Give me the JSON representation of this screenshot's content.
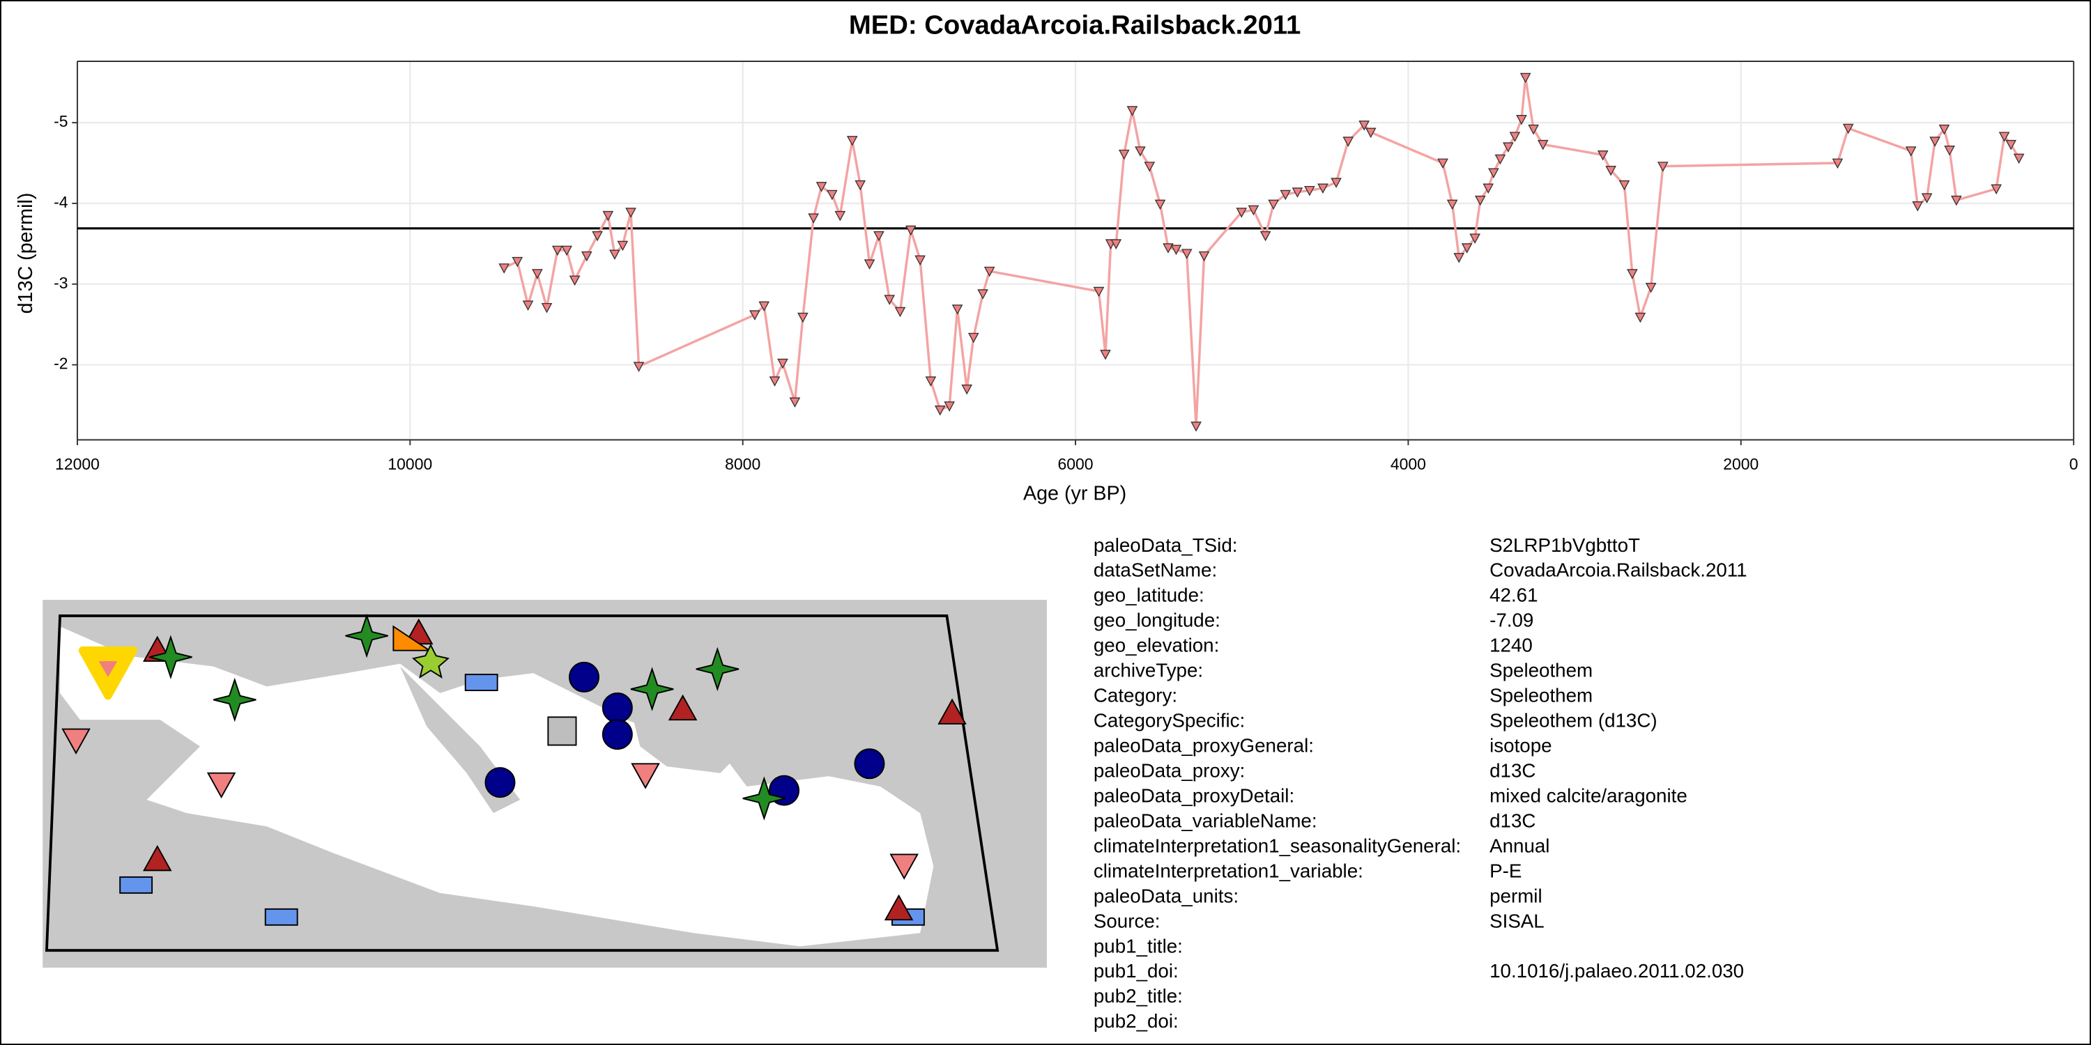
{
  "chart_data": {
    "type": "line",
    "title": "MED: CovadaArcoia.Railsback.2011",
    "xlabel": "Age (yr BP)",
    "ylabel": "d13C (permil)",
    "color": "#f4a3a3",
    "marker_color": "#f08080",
    "xlim": [
      12000,
      0
    ],
    "xticks": [
      12000,
      10000,
      8000,
      6000,
      4000,
      2000,
      0
    ],
    "ylim": [
      -1.07,
      -5.76
    ],
    "yticks": [
      -2,
      -3,
      -4,
      -5
    ],
    "grid": true,
    "hline": -3.69,
    "x": [
      9435,
      9355,
      9291,
      9235,
      9178,
      9114,
      9058,
      9010,
      8938,
      8874,
      8810,
      8770,
      8722,
      8673,
      8625,
      7928,
      7872,
      7808,
      7760,
      7687,
      7639,
      7575,
      7527,
      7463,
      7415,
      7342,
      7294,
      7238,
      7182,
      7118,
      7054,
      6990,
      6934,
      6870,
      6814,
      6758,
      6710,
      6653,
      6613,
      6557,
      6517,
      5860,
      5820,
      5788,
      5756,
      5708,
      5659,
      5611,
      5555,
      5491,
      5443,
      5395,
      5331,
      5275,
      5227,
      5002,
      4930,
      4858,
      4810,
      4738,
      4666,
      4593,
      4513,
      4433,
      4361,
      4265,
      4225,
      3792,
      3735,
      3695,
      3647,
      3599,
      3567,
      3519,
      3487,
      3447,
      3399,
      3359,
      3319,
      3295,
      3247,
      3190,
      2830,
      2782,
      2701,
      2653,
      2605,
      2541,
      2469,
      1419,
      1355,
      978,
      938,
      882,
      834,
      778,
      746,
      705,
      465,
      417,
      377,
      329
    ],
    "values": [
      -3.2,
      -3.28,
      -2.74,
      -3.13,
      -2.71,
      -3.42,
      -3.42,
      -3.05,
      -3.35,
      -3.6,
      -3.85,
      -3.37,
      -3.48,
      -3.89,
      -1.98,
      -2.62,
      -2.73,
      -1.8,
      -2.02,
      -1.54,
      -2.59,
      -3.82,
      -4.21,
      -4.11,
      -3.85,
      -4.78,
      -4.23,
      -3.25,
      -3.6,
      -2.81,
      -2.66,
      -3.67,
      -3.3,
      -1.8,
      -1.44,
      -1.49,
      -2.69,
      -1.7,
      -2.34,
      -2.88,
      -3.16,
      -2.91,
      -2.13,
      -3.5,
      -3.5,
      -4.61,
      -5.15,
      -4.65,
      -4.46,
      -3.99,
      -3.45,
      -3.43,
      -3.38,
      -1.24,
      -3.35,
      -3.89,
      -3.92,
      -3.6,
      -3.99,
      -4.11,
      -4.14,
      -4.16,
      -4.19,
      -4.26,
      -4.77,
      -4.97,
      -4.88,
      -4.5,
      -3.99,
      -3.33,
      -3.45,
      -3.57,
      -4.04,
      -4.19,
      -4.38,
      -4.55,
      -4.7,
      -4.83,
      -5.04,
      -5.56,
      -4.92,
      -4.73,
      -4.6,
      -4.41,
      -4.23,
      -3.13,
      -2.59,
      -2.96,
      -4.46,
      -4.5,
      -4.93,
      -4.65,
      -3.97,
      -4.07,
      -4.77,
      -4.92,
      -4.66,
      -4.04,
      -4.18,
      -4.83,
      -4.73,
      -4.56
    ]
  },
  "metadata": {
    "rows": [
      [
        "paleoData_TSid:",
        "S2LRP1bVgbttoT"
      ],
      [
        "dataSetName:",
        "CovadaArcoia.Railsback.2011"
      ],
      [
        "geo_latitude:",
        "42.61"
      ],
      [
        "geo_longitude:",
        "-7.09"
      ],
      [
        "geo_elevation:",
        "1240"
      ],
      [
        "archiveType:",
        "Speleothem"
      ],
      [
        "Category:",
        "Speleothem"
      ],
      [
        "CategorySpecific:",
        "Speleothem (d13C)"
      ],
      [
        "paleoData_proxyGeneral:",
        "isotope"
      ],
      [
        "paleoData_proxy:",
        "d13C"
      ],
      [
        "paleoData_proxyDetail:",
        "mixed calcite/aragonite"
      ],
      [
        "paleoData_variableName:",
        "d13C"
      ],
      [
        "climateInterpretation1_seasonalityGeneral:",
        "Annual"
      ],
      [
        "climateInterpretation1_variable:",
        "P-E"
      ],
      [
        "paleoData_units:",
        "permil"
      ],
      [
        "Source:",
        "SISAL"
      ],
      [
        "pub1_title:"
      ],
      [
        "pub1_doi:",
        "10.1016/j.palaeo.2011.02.030"
      ],
      [
        "pub2_title:"
      ],
      [
        "pub2_doi:"
      ]
    ]
  }
}
